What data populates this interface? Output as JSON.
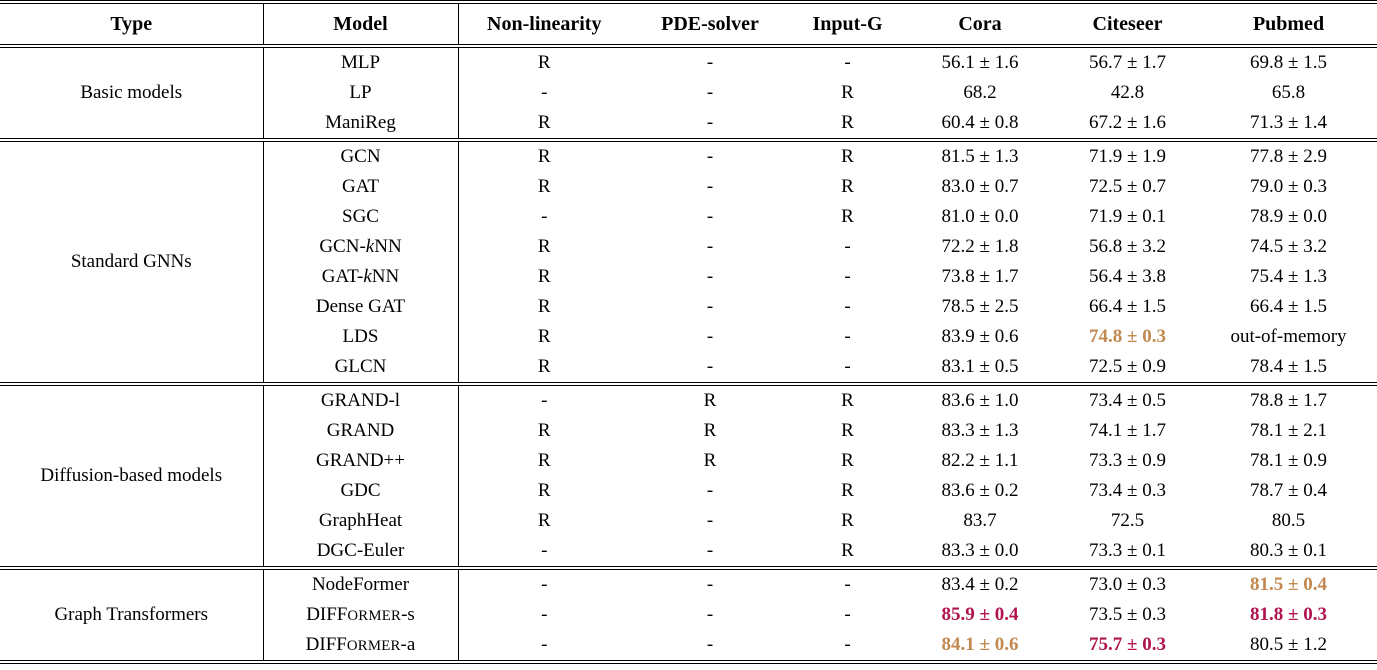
{
  "colors": {
    "best_hex": "#b01450",
    "second_hex": "#c18950"
  },
  "table": {
    "columns": [
      "Type",
      "Model",
      "Non-linearity",
      "PDE-solver",
      "Input-G",
      "Cora",
      "Citeseer",
      "Pubmed"
    ],
    "groups": [
      {
        "type": "Basic models",
        "rows": [
          {
            "model": [
              {
                "t": "MLP"
              }
            ],
            "nonlinearity": "R",
            "pde_solver": "-",
            "input_g": "-",
            "cora": "56.1 ± 1.6",
            "citeseer": "56.7 ± 1.7",
            "pubmed": "69.8 ± 1.5"
          },
          {
            "model": [
              {
                "t": "LP"
              }
            ],
            "nonlinearity": "-",
            "pde_solver": "-",
            "input_g": "R",
            "cora": "68.2",
            "citeseer": "42.8",
            "pubmed": "65.8"
          },
          {
            "model": [
              {
                "t": "ManiReg"
              }
            ],
            "nonlinearity": "R",
            "pde_solver": "-",
            "input_g": "R",
            "cora": "60.4 ± 0.8",
            "citeseer": "67.2 ± 1.6",
            "pubmed": "71.3 ± 1.4"
          }
        ]
      },
      {
        "type": "Standard GNNs",
        "rows": [
          {
            "model": [
              {
                "t": "GCN"
              }
            ],
            "nonlinearity": "R",
            "pde_solver": "-",
            "input_g": "R",
            "cora": "81.5 ± 1.3",
            "citeseer": "71.9 ± 1.9",
            "pubmed": "77.8 ± 2.9"
          },
          {
            "model": [
              {
                "t": "GAT"
              }
            ],
            "nonlinearity": "R",
            "pde_solver": "-",
            "input_g": "R",
            "cora": "83.0 ± 0.7",
            "citeseer": "72.5 ± 0.7",
            "pubmed": "79.0 ± 0.3"
          },
          {
            "model": [
              {
                "t": "SGC"
              }
            ],
            "nonlinearity": "-",
            "pde_solver": "-",
            "input_g": "R",
            "cora": "81.0 ± 0.0",
            "citeseer": "71.9 ± 0.1",
            "pubmed": "78.9 ± 0.0"
          },
          {
            "model": [
              {
                "t": "GCN-"
              },
              {
                "t": "k",
                "i": true
              },
              {
                "t": "NN"
              }
            ],
            "nonlinearity": "R",
            "pde_solver": "-",
            "input_g": "-",
            "cora": "72.2 ± 1.8",
            "citeseer": "56.8 ± 3.2",
            "pubmed": "74.5 ± 3.2"
          },
          {
            "model": [
              {
                "t": "GAT-"
              },
              {
                "t": "k",
                "i": true
              },
              {
                "t": "NN"
              }
            ],
            "nonlinearity": "R",
            "pde_solver": "-",
            "input_g": "-",
            "cora": "73.8 ± 1.7",
            "citeseer": "56.4 ± 3.8",
            "pubmed": "75.4 ± 1.3"
          },
          {
            "model": [
              {
                "t": "Dense GAT"
              }
            ],
            "nonlinearity": "R",
            "pde_solver": "-",
            "input_g": "-",
            "cora": "78.5 ± 2.5",
            "citeseer": "66.4 ± 1.5",
            "pubmed": "66.4 ± 1.5"
          },
          {
            "model": [
              {
                "t": "LDS"
              }
            ],
            "nonlinearity": "R",
            "pde_solver": "-",
            "input_g": "-",
            "cora": "83.9 ± 0.6",
            "citeseer": {
              "t": "74.8 ± 0.3",
              "c": "second"
            },
            "pubmed": "out-of-memory"
          },
          {
            "model": [
              {
                "t": "GLCN"
              }
            ],
            "nonlinearity": "R",
            "pde_solver": "-",
            "input_g": "-",
            "cora": "83.1 ± 0.5",
            "citeseer": "72.5 ± 0.9",
            "pubmed": "78.4 ± 1.5"
          }
        ]
      },
      {
        "type": "Diffusion-based models",
        "rows": [
          {
            "model": [
              {
                "t": "GRAND-l"
              }
            ],
            "nonlinearity": "-",
            "pde_solver": "R",
            "input_g": "R",
            "cora": "83.6 ± 1.0",
            "citeseer": "73.4 ± 0.5",
            "pubmed": "78.8 ± 1.7"
          },
          {
            "model": [
              {
                "t": "GRAND"
              }
            ],
            "nonlinearity": "R",
            "pde_solver": "R",
            "input_g": "R",
            "cora": "83.3 ± 1.3",
            "citeseer": "74.1 ± 1.7",
            "pubmed": "78.1 ± 2.1"
          },
          {
            "model": [
              {
                "t": "GRAND++"
              }
            ],
            "nonlinearity": "R",
            "pde_solver": "R",
            "input_g": "R",
            "cora": "82.2 ± 1.1",
            "citeseer": "73.3 ± 0.9",
            "pubmed": "78.1 ± 0.9"
          },
          {
            "model": [
              {
                "t": "GDC"
              }
            ],
            "nonlinearity": "R",
            "pde_solver": "-",
            "input_g": "R",
            "cora": "83.6 ± 0.2",
            "citeseer": "73.4 ± 0.3",
            "pubmed": "78.7 ± 0.4"
          },
          {
            "model": [
              {
                "t": "GraphHeat"
              }
            ],
            "nonlinearity": "R",
            "pde_solver": "-",
            "input_g": "R",
            "cora": "83.7",
            "citeseer": "72.5",
            "pubmed": "80.5"
          },
          {
            "model": [
              {
                "t": "DGC-Euler"
              }
            ],
            "nonlinearity": "-",
            "pde_solver": "-",
            "input_g": "R",
            "cora": "83.3 ± 0.0",
            "citeseer": "73.3 ± 0.1",
            "pubmed": "80.3 ± 0.1"
          }
        ]
      },
      {
        "type": "Graph Transformers",
        "rows": [
          {
            "model": [
              {
                "t": "NodeFormer"
              }
            ],
            "nonlinearity": "-",
            "pde_solver": "-",
            "input_g": "-",
            "cora": "83.4 ± 0.2",
            "citeseer": "73.0 ± 0.3",
            "pubmed": {
              "t": "81.5 ± 0.4",
              "c": "second"
            }
          },
          {
            "model": [
              {
                "t": "DIFF"
              },
              {
                "t": "ORMER",
                "sc": true
              },
              {
                "t": "-s"
              }
            ],
            "nonlinearity": "-",
            "pde_solver": "-",
            "input_g": "-",
            "cora": {
              "t": "85.9 ± 0.4",
              "c": "best"
            },
            "citeseer": "73.5 ± 0.3",
            "pubmed": {
              "t": "81.8 ± 0.3",
              "c": "best"
            }
          },
          {
            "model": [
              {
                "t": "DIFF"
              },
              {
                "t": "ORMER",
                "sc": true
              },
              {
                "t": "-a"
              }
            ],
            "nonlinearity": "-",
            "pde_solver": "-",
            "input_g": "-",
            "cora": {
              "t": "84.1 ± 0.6",
              "c": "second"
            },
            "citeseer": {
              "t": "75.7 ± 0.3",
              "c": "best"
            },
            "pubmed": "80.5 ± 1.2"
          }
        ]
      }
    ]
  }
}
